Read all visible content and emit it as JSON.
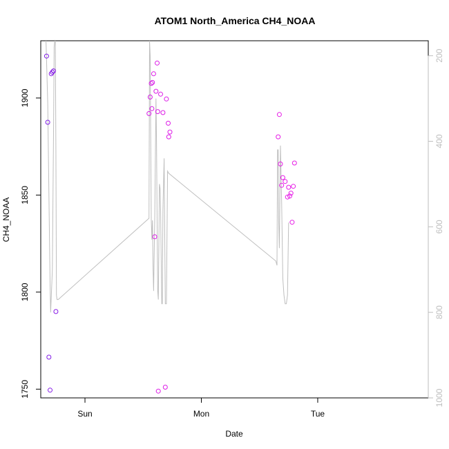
{
  "chart_data": {
    "type": "scatter",
    "title": "ATOM1 North_America CH4_NOAA",
    "xlabel": "Date",
    "ylabel": "CH4_NOAA",
    "x_unit": "day",
    "x_domain": [
      -0.38,
      2.95
    ],
    "x_ticks": [
      {
        "value": 0,
        "label": "Sun"
      },
      {
        "value": 1,
        "label": "Mon"
      },
      {
        "value": 2,
        "label": "Tue"
      }
    ],
    "ylim": [
      1745.5,
      1929.5
    ],
    "y_ticks": [
      1750,
      1800,
      1850,
      1900
    ],
    "y2lim": [
      1000,
      165
    ],
    "y2_ticks": [
      200,
      400,
      600,
      800,
      1000
    ],
    "grid": false,
    "point_color_low": "#7f1ae6",
    "point_color_high": "#e61ae6",
    "line_color": "#bebebe",
    "points": [
      {
        "x": -0.33,
        "y": 1921.6,
        "c": 0.0
      },
      {
        "x": -0.32,
        "y": 1887.5,
        "c": 0.0
      },
      {
        "x": -0.31,
        "y": 1766.5,
        "c": 0.02
      },
      {
        "x": -0.3,
        "y": 1749.5,
        "c": 0.05
      },
      {
        "x": -0.29,
        "y": 1912.5,
        "c": 0.05
      },
      {
        "x": -0.28,
        "y": 1913.3,
        "c": 0.05
      },
      {
        "x": -0.27,
        "y": 1914.0,
        "c": 0.05
      },
      {
        "x": -0.25,
        "y": 1790.0,
        "c": 0.08
      },
      {
        "x": 0.55,
        "y": 1892.0,
        "c": 0.85
      },
      {
        "x": 0.56,
        "y": 1900.5,
        "c": 0.85
      },
      {
        "x": 0.57,
        "y": 1907.5,
        "c": 0.85
      },
      {
        "x": 0.575,
        "y": 1894.5,
        "c": 0.85
      },
      {
        "x": 0.58,
        "y": 1908.0,
        "c": 0.85
      },
      {
        "x": 0.59,
        "y": 1912.5,
        "c": 0.9
      },
      {
        "x": 0.6,
        "y": 1828.5,
        "c": 0.9
      },
      {
        "x": 0.61,
        "y": 1903.5,
        "c": 0.9
      },
      {
        "x": 0.62,
        "y": 1918.0,
        "c": 0.9
      },
      {
        "x": 0.625,
        "y": 1893.0,
        "c": 0.9
      },
      {
        "x": 0.63,
        "y": 1749.0,
        "c": 0.9
      },
      {
        "x": 0.65,
        "y": 1902.0,
        "c": 0.9
      },
      {
        "x": 0.67,
        "y": 1892.5,
        "c": 0.9
      },
      {
        "x": 0.69,
        "y": 1751.0,
        "c": 0.9
      },
      {
        "x": 0.7,
        "y": 1899.5,
        "c": 0.9
      },
      {
        "x": 0.715,
        "y": 1887.0,
        "c": 0.9
      },
      {
        "x": 0.72,
        "y": 1880.0,
        "c": 0.9
      },
      {
        "x": 0.73,
        "y": 1882.5,
        "c": 0.9
      },
      {
        "x": 1.66,
        "y": 1880.0,
        "c": 1.0
      },
      {
        "x": 1.67,
        "y": 1891.5,
        "c": 1.0
      },
      {
        "x": 1.68,
        "y": 1866.0,
        "c": 1.0
      },
      {
        "x": 1.69,
        "y": 1855.0,
        "c": 1.0
      },
      {
        "x": 1.7,
        "y": 1859.0,
        "c": 1.0
      },
      {
        "x": 1.72,
        "y": 1857.0,
        "c": 1.0
      },
      {
        "x": 1.74,
        "y": 1849.0,
        "c": 1.0
      },
      {
        "x": 1.75,
        "y": 1854.0,
        "c": 1.0
      },
      {
        "x": 1.76,
        "y": 1849.5,
        "c": 1.0
      },
      {
        "x": 1.77,
        "y": 1851.0,
        "c": 1.0
      },
      {
        "x": 1.78,
        "y": 1836.0,
        "c": 1.0
      },
      {
        "x": 1.79,
        "y": 1854.5,
        "c": 1.0
      },
      {
        "x": 1.8,
        "y": 1866.5,
        "c": 1.0
      }
    ],
    "line_series": [
      [
        -0.335,
        165
      ],
      [
        -0.32,
        310
      ],
      [
        -0.3,
        735
      ],
      [
        -0.295,
        800
      ],
      [
        -0.28,
        700
      ],
      [
        -0.27,
        380
      ],
      [
        -0.265,
        180
      ],
      [
        -0.26,
        165
      ],
      [
        -0.255,
        165
      ],
      [
        -0.25,
        410
      ],
      [
        -0.245,
        760
      ],
      [
        -0.24,
        770
      ],
      [
        -0.23,
        770
      ],
      [
        0.55,
        580
      ],
      [
        0.555,
        165
      ],
      [
        0.56,
        200
      ],
      [
        0.565,
        400
      ],
      [
        0.57,
        585
      ],
      [
        0.575,
        630
      ],
      [
        0.58,
        585
      ],
      [
        0.585,
        700
      ],
      [
        0.59,
        750
      ],
      [
        0.6,
        570
      ],
      [
        0.61,
        300
      ],
      [
        0.615,
        400
      ],
      [
        0.62,
        600
      ],
      [
        0.625,
        750
      ],
      [
        0.63,
        770
      ],
      [
        0.635,
        640
      ],
      [
        0.64,
        500
      ],
      [
        0.645,
        510
      ],
      [
        0.65,
        560
      ],
      [
        0.66,
        780
      ],
      [
        0.665,
        780
      ],
      [
        0.67,
        560
      ],
      [
        0.68,
        440
      ],
      [
        0.69,
        780
      ],
      [
        0.7,
        780
      ],
      [
        0.71,
        470
      ],
      [
        0.72,
        475
      ],
      [
        1.64,
        680
      ],
      [
        1.65,
        690
      ],
      [
        1.655,
        420
      ],
      [
        1.66,
        420
      ],
      [
        1.665,
        590
      ],
      [
        1.67,
        650
      ],
      [
        1.68,
        410
      ],
      [
        1.69,
        540
      ],
      [
        1.7,
        720
      ],
      [
        1.71,
        760
      ],
      [
        1.72,
        780
      ],
      [
        1.73,
        780
      ],
      [
        1.74,
        760
      ],
      [
        1.75,
        590
      ]
    ]
  }
}
